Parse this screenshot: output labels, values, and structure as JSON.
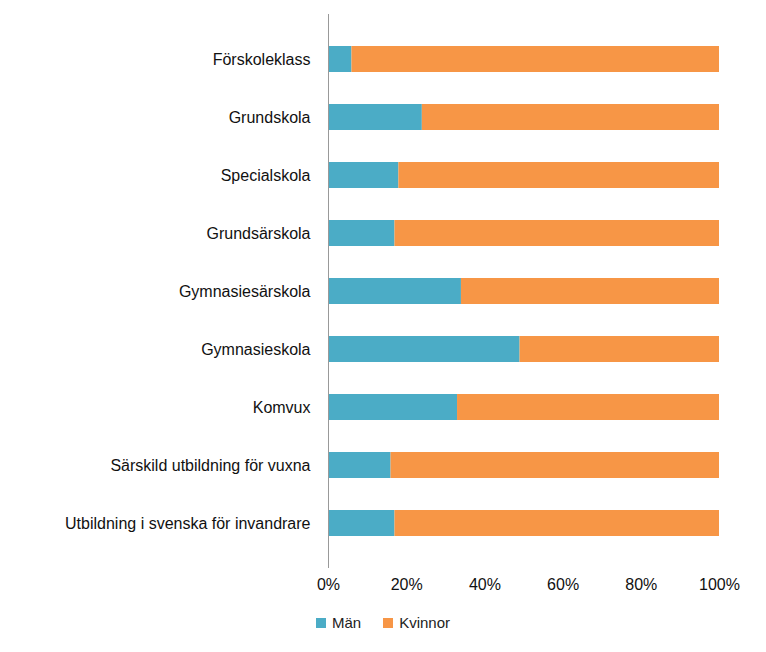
{
  "chart_data": {
    "type": "bar",
    "orientation": "horizontal",
    "stacked": true,
    "grid": false,
    "legend": "bottom",
    "categories": [
      "Förskoleklass",
      "Grundskola",
      "Specialskola",
      "Grundsärskola",
      "Gymnasiesärskola",
      "Gymnasieskola",
      "Komvux",
      "Särskild utbildning för vuxna",
      "Utbildning i svenska för invandrare"
    ],
    "series": [
      {
        "name": "Män",
        "color": "#4bacc6",
        "values": [
          6,
          24,
          18,
          17,
          34,
          49,
          33,
          16,
          17
        ]
      },
      {
        "name": "Kvinnor",
        "color": "#f79646",
        "values": [
          94,
          76,
          82,
          83,
          66,
          51,
          67,
          84,
          83
        ]
      }
    ],
    "xlim": [
      0,
      100
    ],
    "xticks": [
      {
        "value": 0,
        "label": "0%"
      },
      {
        "value": 20,
        "label": "20%"
      },
      {
        "value": 40,
        "label": "40%"
      },
      {
        "value": 60,
        "label": "60%"
      },
      {
        "value": 80,
        "label": "80%"
      },
      {
        "value": 100,
        "label": "100%"
      }
    ]
  }
}
